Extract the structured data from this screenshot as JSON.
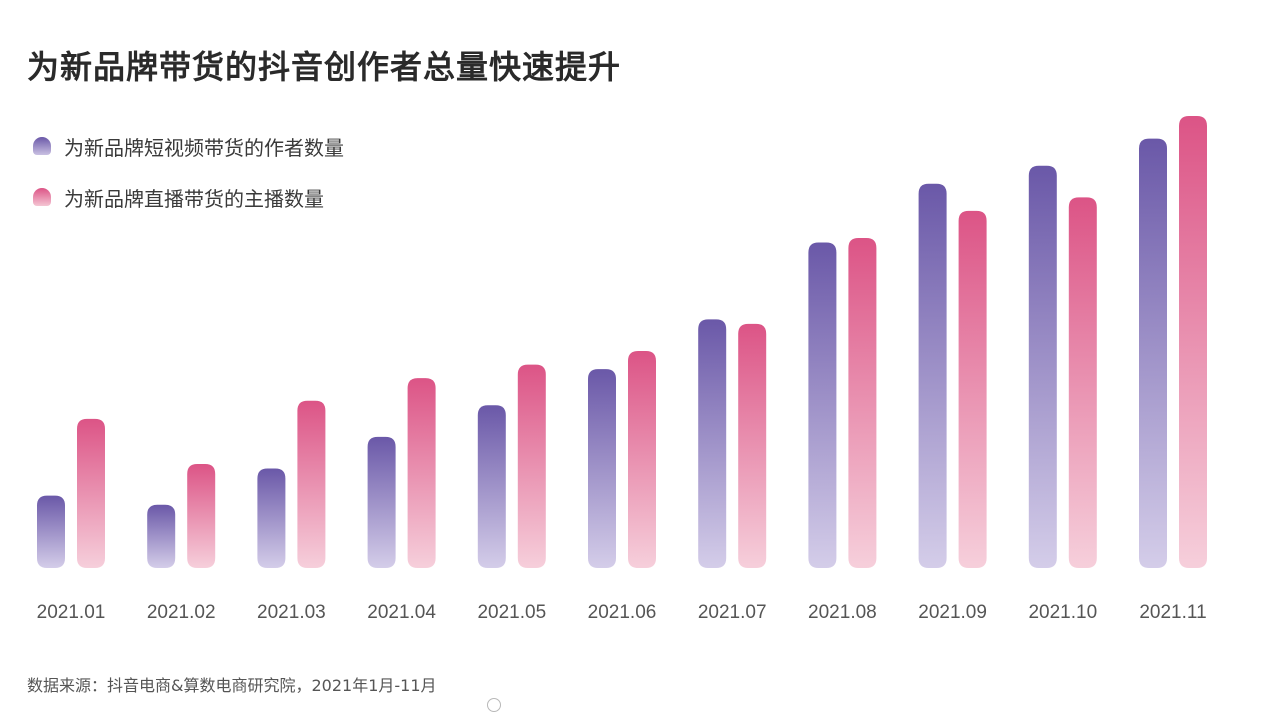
{
  "title": "为新品牌带货的抖音创作者总量快速提升",
  "source": "数据来源：抖音电商&算数电商研究院，2021年1月-11月",
  "colors": {
    "purple_top": "#6a58a8",
    "purple_bottom": "#d4cde9",
    "pink_top": "#dc5486",
    "pink_bottom": "#f6cfdb"
  },
  "chart_data": {
    "type": "bar",
    "categories": [
      "2021.01",
      "2021.02",
      "2021.03",
      "2021.04",
      "2021.05",
      "2021.06",
      "2021.07",
      "2021.08",
      "2021.09",
      "2021.10",
      "2021.11"
    ],
    "series": [
      {
        "name": "为新品牌短视频带货的作者数量",
        "values": [
          16,
          14,
          22,
          29,
          36,
          44,
          55,
          72,
          85,
          89,
          95
        ]
      },
      {
        "name": "为新品牌直播带货的主播数量",
        "values": [
          33,
          23,
          37,
          42,
          45,
          48,
          54,
          73,
          79,
          82,
          100
        ]
      }
    ],
    "ylim": [
      0,
      100
    ],
    "legend": "top-left",
    "grid": false
  }
}
